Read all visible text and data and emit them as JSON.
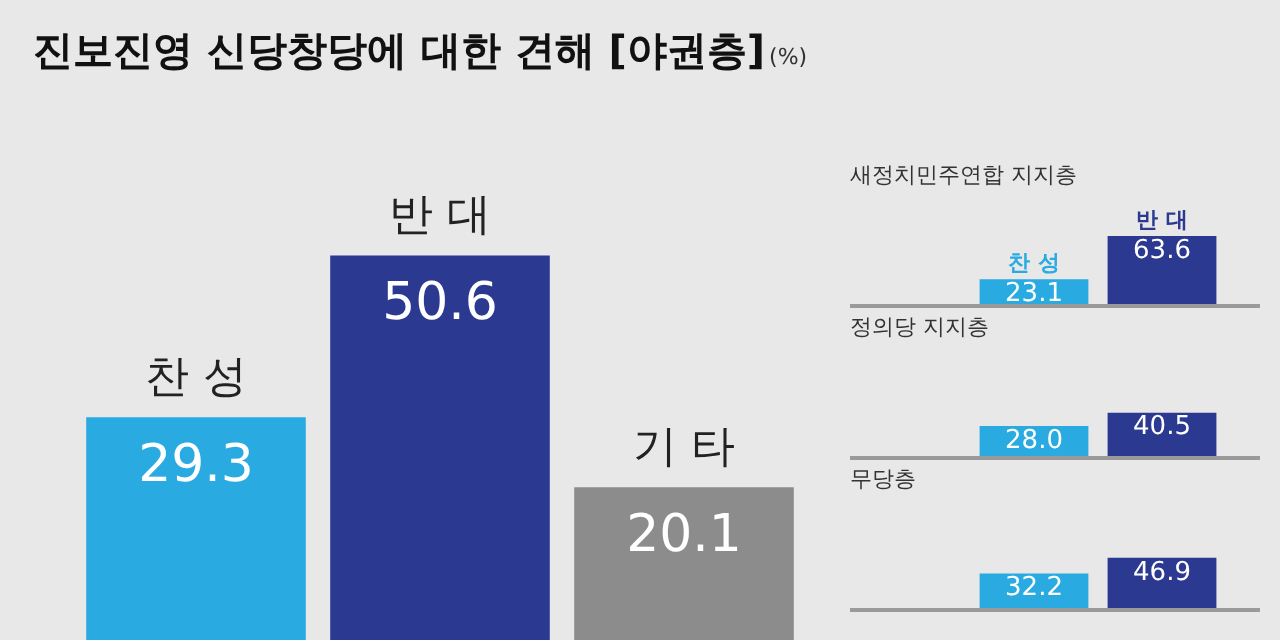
{
  "chart_data": [
    {
      "type": "bar",
      "title": "진보진영 신당창당에 대한 견해 [야권층]",
      "subtitle": "(%)",
      "categories": [
        "찬 성",
        "반 대",
        "기 타"
      ],
      "values": [
        29.3,
        50.6,
        20.1
      ],
      "colors": [
        "#29abe2",
        "#2b3990",
        "#8c8c8c"
      ],
      "data_labels": true
    },
    {
      "type": "bar",
      "title": "새정치민주연합 지지층",
      "categories": [
        "찬 성",
        "반 대"
      ],
      "values": [
        23.1,
        63.6
      ],
      "colors": [
        "#29abe2",
        "#2b3990"
      ],
      "data_labels": true
    },
    {
      "type": "bar",
      "title": "정의당 지지층",
      "categories": [
        null,
        null
      ],
      "values": [
        28.0,
        40.5
      ],
      "colors": [
        "#29abe2",
        "#2b3990"
      ],
      "value_labels": [
        "28.0",
        "40.5"
      ]
    },
    {
      "type": "bar",
      "title": "무당층",
      "categories": [
        null,
        null
      ],
      "values": [
        32.2,
        46.9
      ],
      "colors": [
        "#29abe2",
        "#2b3990"
      ],
      "data_labels": true
    }
  ]
}
